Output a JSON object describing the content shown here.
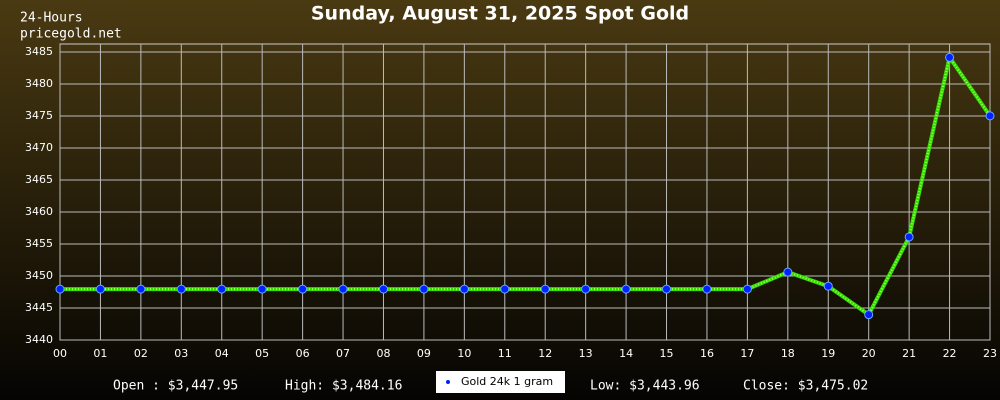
{
  "chart_data": {
    "type": "line",
    "title": "Sunday, August 31, 2025 Spot Gold",
    "source_lines": [
      "24-Hours",
      "pricegold.net"
    ],
    "categories": [
      "00",
      "01",
      "02",
      "03",
      "04",
      "05",
      "06",
      "07",
      "08",
      "09",
      "10",
      "11",
      "12",
      "13",
      "14",
      "15",
      "16",
      "17",
      "18",
      "19",
      "20",
      "21",
      "22",
      "23"
    ],
    "series": [
      {
        "name": "Gold 24k 1 gram",
        "color": "#33dd00",
        "marker_color": "#0022ff",
        "values": [
          3447.95,
          3447.95,
          3447.95,
          3447.95,
          3447.95,
          3447.95,
          3447.95,
          3447.95,
          3447.95,
          3447.95,
          3447.95,
          3447.95,
          3447.95,
          3447.95,
          3447.95,
          3447.95,
          3447.95,
          3447.95,
          3450.6,
          3448.4,
          3443.96,
          3456.1,
          3484.16,
          3475.02
        ]
      }
    ],
    "ylim": [
      3440,
      3485
    ],
    "yticks": [
      3440,
      3445,
      3450,
      3455,
      3460,
      3465,
      3470,
      3475,
      3480,
      3485
    ],
    "grid": true,
    "summary": [
      "Open : $3,447.95",
      "High: $3,484.16",
      "Low: $3,443.96",
      "Close: $3,475.02"
    ]
  }
}
